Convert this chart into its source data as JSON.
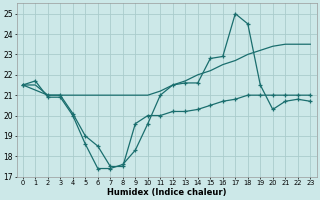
{
  "xlabel": "Humidex (Indice chaleur)",
  "background_color": "#cce8e8",
  "grid_color": "#aacccc",
  "line_color": "#1a6e6e",
  "xlim": [
    -0.5,
    23.5
  ],
  "ylim": [
    17,
    25.5
  ],
  "yticks": [
    17,
    18,
    19,
    20,
    21,
    22,
    23,
    24,
    25
  ],
  "xticks": [
    0,
    1,
    2,
    3,
    4,
    5,
    6,
    7,
    8,
    9,
    10,
    11,
    12,
    13,
    14,
    15,
    16,
    17,
    18,
    19,
    20,
    21,
    22,
    23
  ],
  "line1_x": [
    0,
    1,
    2,
    3,
    4,
    5,
    6,
    7,
    8,
    9,
    10,
    11,
    12,
    13,
    14,
    15,
    16,
    17,
    18,
    19,
    20,
    21,
    22,
    23
  ],
  "line1_y": [
    21.5,
    21.5,
    21.0,
    21.0,
    21.0,
    21.0,
    21.0,
    21.0,
    21.0,
    21.0,
    21.0,
    21.2,
    21.5,
    21.7,
    22.0,
    22.2,
    22.5,
    22.7,
    23.0,
    23.2,
    23.4,
    23.5,
    23.5,
    23.5
  ],
  "line2_x": [
    0,
    1,
    2,
    3,
    4,
    5,
    6,
    7,
    8,
    9,
    10,
    11,
    12,
    13,
    14,
    15,
    16,
    17,
    18,
    19,
    20,
    21,
    22,
    23
  ],
  "line2_y": [
    21.5,
    21.7,
    20.9,
    20.9,
    20.0,
    18.6,
    17.4,
    17.4,
    17.6,
    18.3,
    19.6,
    21.0,
    21.5,
    21.6,
    21.6,
    22.8,
    22.9,
    25.0,
    24.5,
    21.5,
    20.3,
    20.7,
    20.8,
    20.7
  ],
  "line3_x": [
    0,
    2,
    3,
    4,
    5,
    6,
    7,
    8,
    9,
    10,
    11,
    12,
    13,
    14,
    15,
    16,
    17,
    18,
    19,
    20,
    21,
    22,
    23
  ],
  "line3_y": [
    21.5,
    21.0,
    21.0,
    20.1,
    19.0,
    18.5,
    17.5,
    17.5,
    19.6,
    20.0,
    20.0,
    20.2,
    20.2,
    20.3,
    20.5,
    20.7,
    20.8,
    21.0,
    21.0,
    21.0,
    21.0,
    21.0,
    21.0
  ]
}
